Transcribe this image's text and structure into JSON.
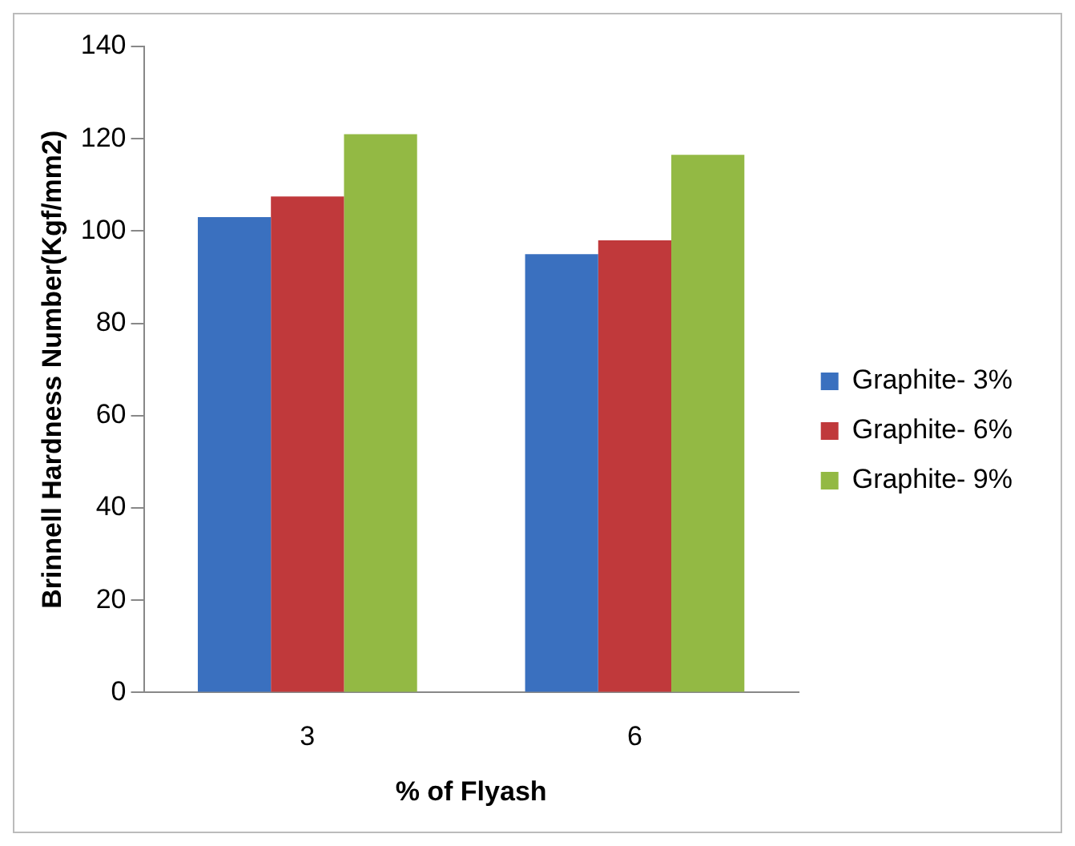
{
  "chart_data": {
    "type": "bar",
    "xlabel": "% of Flyash",
    "ylabel": "Brinnell Hardness Number(Kgf/mm2)",
    "categories": [
      "3",
      "6"
    ],
    "series": [
      {
        "name": "Graphite- 3%",
        "color": "#3a70bf",
        "values": [
          103,
          95
        ]
      },
      {
        "name": "Graphite- 6%",
        "color": "#c0393b",
        "values": [
          107.5,
          98
        ]
      },
      {
        "name": "Graphite- 9%",
        "color": "#93b944",
        "values": [
          121,
          116.5
        ]
      }
    ],
    "ylim": [
      0,
      140
    ],
    "yticks": [
      0,
      20,
      40,
      60,
      80,
      100,
      120,
      140
    ],
    "grid": false,
    "legend": "right"
  }
}
